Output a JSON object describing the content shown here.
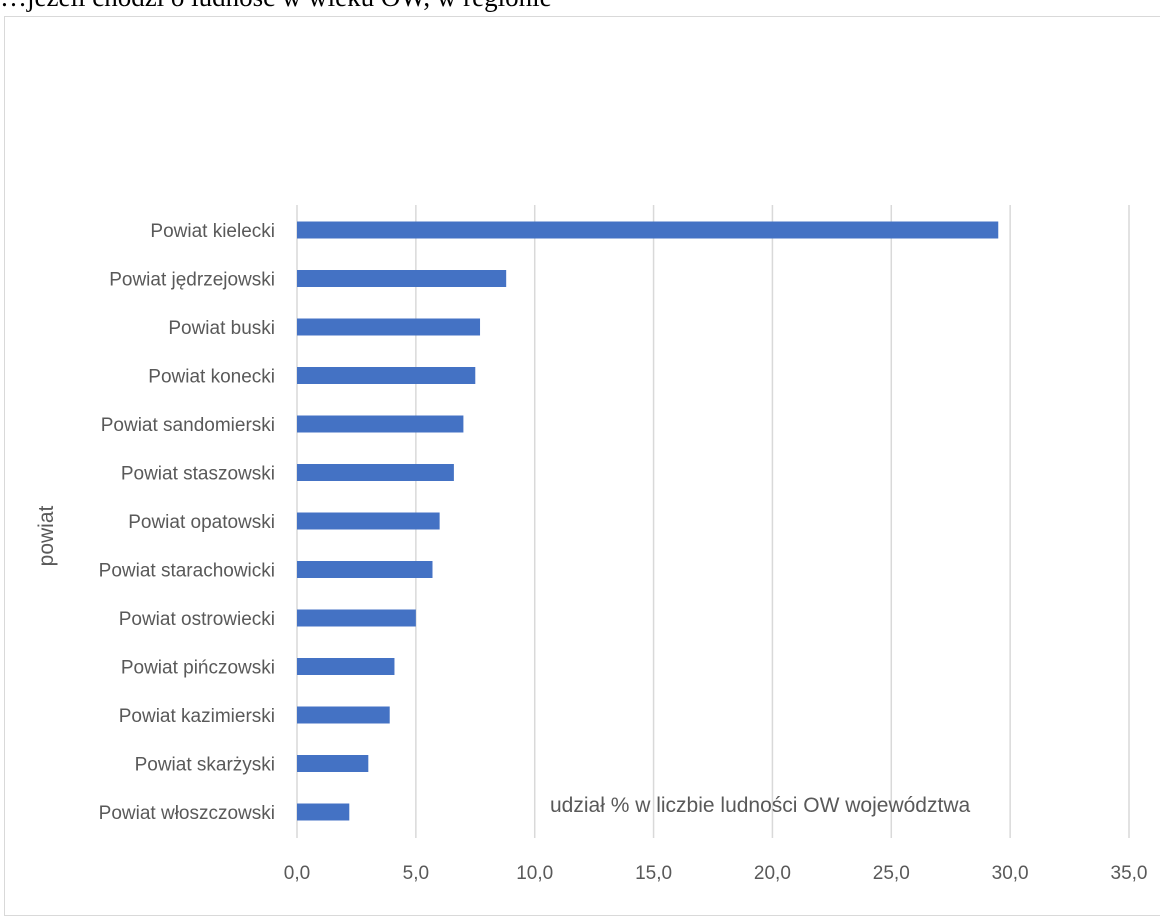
{
  "caption": "…jeżeli chodzi o ludność w wieku OW, w regionie",
  "chart_data": {
    "type": "bar",
    "orientation": "horizontal",
    "title": "",
    "xlabel": "udział % w liczbie ludności OW województwa",
    "ylabel": "powiat",
    "xlim": [
      0,
      35
    ],
    "xticks": [
      "0,0",
      "5,0",
      "10,0",
      "15,0",
      "20,0",
      "25,0",
      "30,0",
      "35,0"
    ],
    "grid": true,
    "bar_color": "#4472c4",
    "grid_color": "#d9d9d9",
    "categories": [
      "Powiat kielecki",
      "Powiat jędrzejowski",
      "Powiat buski",
      "Powiat konecki",
      "Powiat sandomierski",
      "Powiat staszowski",
      "Powiat opatowski",
      "Powiat starachowicki",
      "Powiat ostrowiecki",
      "Powiat pińczowski",
      "Powiat kazimierski",
      "Powiat skarżyski",
      "Powiat włoszczowski"
    ],
    "values": [
      29.5,
      8.8,
      7.7,
      7.5,
      7.0,
      6.6,
      6.0,
      5.7,
      5.0,
      4.1,
      3.9,
      3.0,
      2.2
    ]
  }
}
